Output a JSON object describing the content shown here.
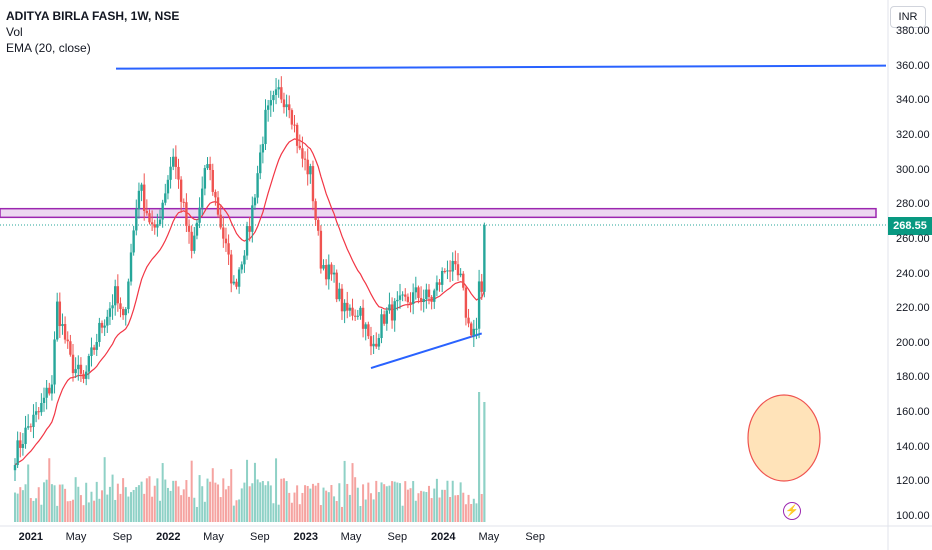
{
  "legend": {
    "title": "ADITYA BIRLA FASH, 1W, NSE",
    "volume_label": "Vol",
    "ema_label": "EMA (20, close)"
  },
  "currency": "INR",
  "last_price": "268.55",
  "colors": {
    "up": "#26a69a",
    "down": "#ef5350",
    "ema": "#f23645",
    "trendline": "#2962ff",
    "zone": "#9c27b0",
    "highlight": "#ffcc80"
  },
  "chart_data": {
    "type": "candlestick",
    "ylim": [
      100,
      380
    ],
    "y_ticks": [
      "380.00",
      "360.00",
      "340.00",
      "320.00",
      "300.00",
      "280.00",
      "260.00",
      "240.00",
      "220.00",
      "200.00",
      "180.00",
      "160.00",
      "140.00",
      "120.00",
      "100.00"
    ],
    "x_ticks": [
      "2021",
      "May",
      "Sep",
      "2022",
      "May",
      "Sep",
      "2023",
      "May",
      "Sep",
      "2024",
      "May",
      "Sep"
    ],
    "ohlc_anchors": [
      {
        "date": "2020-11-20",
        "close": 136
      },
      {
        "date": "2020-12-25",
        "close": 152
      },
      {
        "date": "2021-01-22",
        "close": 160
      },
      {
        "date": "2021-02-26",
        "close": 178
      },
      {
        "date": "2021-03-12",
        "close": 222
      },
      {
        "date": "2021-04-16",
        "close": 190
      },
      {
        "date": "2021-05-21",
        "close": 178
      },
      {
        "date": "2021-07-02",
        "close": 208
      },
      {
        "date": "2021-08-13",
        "close": 228
      },
      {
        "date": "2021-09-03",
        "close": 212
      },
      {
        "date": "2021-10-15",
        "close": 292
      },
      {
        "date": "2021-11-26",
        "close": 262
      },
      {
        "date": "2022-01-14",
        "close": 310
      },
      {
        "date": "2022-03-04",
        "close": 252
      },
      {
        "date": "2022-04-15",
        "close": 305
      },
      {
        "date": "2022-05-27",
        "close": 262
      },
      {
        "date": "2022-06-24",
        "close": 232
      },
      {
        "date": "2022-08-05",
        "close": 268
      },
      {
        "date": "2022-09-16",
        "close": 330
      },
      {
        "date": "2022-10-21",
        "close": 345
      },
      {
        "date": "2022-11-18",
        "close": 340
      },
      {
        "date": "2022-12-16",
        "close": 310
      },
      {
        "date": "2023-01-13",
        "close": 298
      },
      {
        "date": "2023-02-10",
        "close": 248
      },
      {
        "date": "2023-03-17",
        "close": 236
      },
      {
        "date": "2023-04-14",
        "close": 218
      },
      {
        "date": "2023-05-26",
        "close": 220
      },
      {
        "date": "2023-06-23",
        "close": 196
      },
      {
        "date": "2023-07-28",
        "close": 216
      },
      {
        "date": "2023-09-08",
        "close": 222
      },
      {
        "date": "2023-10-20",
        "close": 228
      },
      {
        "date": "2023-12-01",
        "close": 226
      },
      {
        "date": "2024-01-12",
        "close": 246
      },
      {
        "date": "2024-02-16",
        "close": 236
      },
      {
        "date": "2024-03-08",
        "close": 210
      },
      {
        "date": "2024-03-29",
        "close": 208
      },
      {
        "date": "2024-04-12",
        "close": 232
      },
      {
        "date": "2024-04-19",
        "close": 268.55
      }
    ],
    "resistance_zone": [
      273,
      278
    ],
    "horizontal_line": 360,
    "rising_trendline": [
      {
        "date": "2023-06-23",
        "price": 186
      },
      {
        "date": "2024-04-12",
        "price": 206
      }
    ],
    "last_price": 268.55
  }
}
